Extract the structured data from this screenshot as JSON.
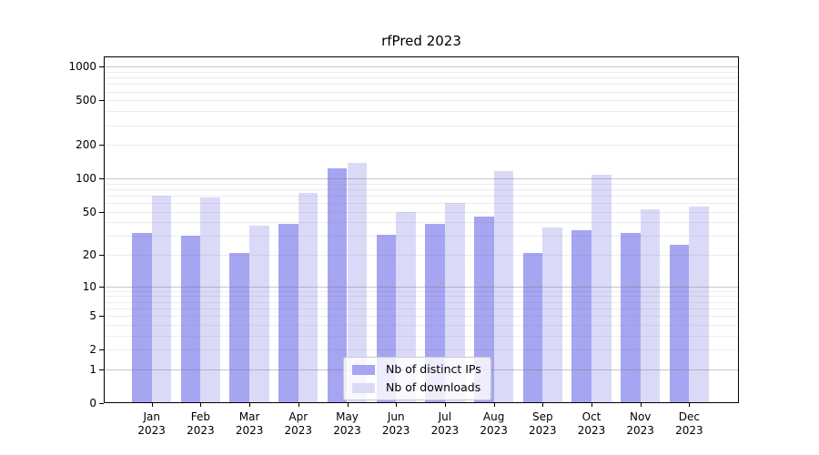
{
  "chart_data": {
    "type": "bar",
    "title": "rfPred 2023",
    "categories": [
      "Jan 2023",
      "Feb 2023",
      "Mar 2023",
      "Apr 2023",
      "May 2023",
      "Jun 2023",
      "Jul 2023",
      "Aug 2023",
      "Sep 2023",
      "Oct 2023",
      "Nov 2023",
      "Dec 2023"
    ],
    "months": [
      "Jan",
      "Feb",
      "Mar",
      "Apr",
      "May",
      "Jun",
      "Jul",
      "Aug",
      "Sep",
      "Oct",
      "Nov",
      "Dec"
    ],
    "year": "2023",
    "series": [
      {
        "name": "Nb of distinct IPs",
        "color": "#a5a5f2",
        "values": [
          32,
          30,
          21,
          39,
          123,
          31,
          39,
          45,
          21,
          34,
          32,
          25
        ]
      },
      {
        "name": "Nb of downloads",
        "color": "#dadaf8",
        "values": [
          70,
          68,
          37,
          74,
          138,
          50,
          60,
          117,
          36,
          108,
          53,
          56
        ]
      }
    ],
    "yticks": [
      1000,
      500,
      200,
      100,
      50,
      20,
      10,
      5,
      2,
      1,
      0
    ],
    "major_grid_values": [
      1,
      10,
      100,
      1000
    ],
    "scale": "log10(1+v)",
    "ylim": [
      0,
      1236
    ],
    "grid": {
      "major_color": "#c8c8c8",
      "minor_color": "#ededed",
      "on": true
    },
    "legend": {
      "position": "lower center",
      "labels": [
        "Nb of distinct IPs",
        "Nb of downloads"
      ]
    },
    "xlabel": "",
    "ylabel": ""
  }
}
